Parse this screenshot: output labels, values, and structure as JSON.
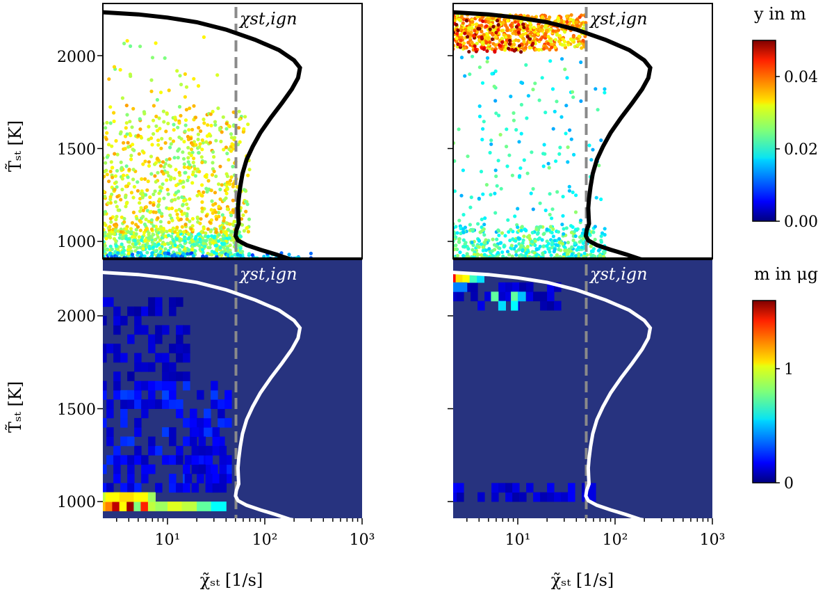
{
  "chart_data": [
    {
      "type": "scatter",
      "xscale": "log",
      "xlim": [
        2,
        1000
      ],
      "ylim": [
        900,
        2250
      ],
      "yticks": [
        "1000",
        "1500",
        "2000"
      ],
      "ylabel": "T̃ₛₜ [K]",
      "annotation": "χst,ign",
      "chi_ign": 48,
      "colorbar": {
        "label": "y in m",
        "min": 0.0,
        "max": 0.05,
        "ticks": [
          "0.00",
          "0.02",
          "0.04"
        ]
      },
      "clouds": [
        {
          "region": "dense band near 920-1050 K",
          "x": [
            2,
            60
          ],
          "y": [
            920,
            1050
          ],
          "color_value": 0.025
        },
        {
          "region": "scattered cloud",
          "x": [
            2,
            70
          ],
          "y": [
            1050,
            1700
          ],
          "color_value": 0.03
        },
        {
          "region": "sparse upper points",
          "x": [
            2,
            40
          ],
          "y": [
            1700,
            2100
          ],
          "color_value": 0.03
        },
        {
          "region": "low-y points at bottom",
          "x": [
            2,
            300
          ],
          "y": [
            905,
            940
          ],
          "color_value": 0.015
        }
      ]
    },
    {
      "type": "scatter",
      "xscale": "log",
      "xlim": [
        2,
        1000
      ],
      "ylim": [
        900,
        2250
      ],
      "annotation": "χst,ign",
      "chi_ign": 48,
      "clouds": [
        {
          "region": "burning branch 2050-2220 K",
          "x": [
            2,
            50
          ],
          "y": [
            2030,
            2220
          ],
          "color_value": 0.035
        },
        {
          "region": "hot high-y points",
          "x": [
            2,
            15
          ],
          "y": [
            2020,
            2200
          ],
          "color_value": 0.048
        },
        {
          "region": "sparse middle points",
          "x": [
            2,
            80
          ],
          "y": [
            1050,
            2000
          ],
          "color_value": 0.02
        },
        {
          "region": "dense low band",
          "x": [
            2,
            80
          ],
          "y": [
            905,
            1080
          ],
          "color_value": 0.022
        }
      ]
    },
    {
      "type": "heatmap",
      "xscale": "log",
      "xlim": [
        2,
        1000
      ],
      "ylim": [
        900,
        2250
      ],
      "xticks": [
        "10¹",
        "10²",
        "10³"
      ],
      "yticks": [
        "1000",
        "1500",
        "2000"
      ],
      "xlabel": "χ̃ₛₜ [1/s]",
      "ylabel": "T̃ₛₜ [K]",
      "annotation": "χst,ign",
      "chi_ign": 48,
      "colorbar": {
        "label": "m in μg",
        "min": 0,
        "max": 1.6,
        "ticks": [
          "0",
          "1"
        ]
      },
      "hot_cells": [
        {
          "x": [
            2.0,
            2.3
          ],
          "y": [
            950,
            1000
          ],
          "value": 1.1
        },
        {
          "x": [
            2.3,
            2.7
          ],
          "y": [
            950,
            1000
          ],
          "value": 1.2
        },
        {
          "x": [
            2.7,
            3.2
          ],
          "y": [
            950,
            1000
          ],
          "value": 1.5
        },
        {
          "x": [
            3.2,
            3.8
          ],
          "y": [
            950,
            1000
          ],
          "value": 1.0
        },
        {
          "x": [
            3.8,
            4.5
          ],
          "y": [
            950,
            1000
          ],
          "value": 1.55
        },
        {
          "x": [
            4.5,
            5.3
          ],
          "y": [
            950,
            1000
          ],
          "value": 0.8
        },
        {
          "x": [
            5.3,
            6.3
          ],
          "y": [
            950,
            1000
          ],
          "value": 1.35
        },
        {
          "x": [
            6.3,
            7.5
          ],
          "y": [
            950,
            1000
          ],
          "value": 0.9
        },
        {
          "x": [
            7.5,
            10
          ],
          "y": [
            950,
            1000
          ],
          "value": 0.85
        },
        {
          "x": [
            10,
            14
          ],
          "y": [
            950,
            1000
          ],
          "value": 0.95
        },
        {
          "x": [
            14,
            20
          ],
          "y": [
            950,
            1000
          ],
          "value": 0.9
        },
        {
          "x": [
            20,
            28
          ],
          "y": [
            950,
            1000
          ],
          "value": 0.75
        },
        {
          "x": [
            28,
            40
          ],
          "y": [
            950,
            1000
          ],
          "value": 0.6
        },
        {
          "x": [
            2.0,
            2.3
          ],
          "y": [
            1000,
            1050
          ],
          "value": 0.9
        },
        {
          "x": [
            2.3,
            3.2
          ],
          "y": [
            1000,
            1050
          ],
          "value": 1.0
        },
        {
          "x": [
            3.2,
            4.5
          ],
          "y": [
            1000,
            1050
          ],
          "value": 1.05
        },
        {
          "x": [
            4.5,
            6.3
          ],
          "y": [
            1000,
            1050
          ],
          "value": 1.0
        },
        {
          "x": [
            6.3,
            7.5
          ],
          "y": [
            1000,
            1050
          ],
          "value": 0.85
        }
      ]
    },
    {
      "type": "heatmap",
      "xscale": "log",
      "xlim": [
        2,
        1000
      ],
      "ylim": [
        900,
        2250
      ],
      "xticks": [
        "10¹",
        "10²",
        "10³"
      ],
      "xlabel": "χ̃ₛₜ [1/s]",
      "annotation": "χst,ign",
      "chi_ign": 48,
      "hot_cells": [
        {
          "x": [
            2.0,
            2.3
          ],
          "y": [
            2180,
            2230
          ],
          "value": 1.4
        },
        {
          "x": [
            2.3,
            2.7
          ],
          "y": [
            2180,
            2230
          ],
          "value": 1.05
        },
        {
          "x": [
            2.7,
            3.2
          ],
          "y": [
            2180,
            2230
          ],
          "value": 1.0
        },
        {
          "x": [
            3.2,
            3.8
          ],
          "y": [
            2180,
            2230
          ],
          "value": 0.7
        },
        {
          "x": [
            3.8,
            4.5
          ],
          "y": [
            2180,
            2230
          ],
          "value": 0.55
        },
        {
          "x": [
            5.3,
            6.3
          ],
          "y": [
            2080,
            2130
          ],
          "value": 0.75
        },
        {
          "x": [
            6.3,
            7.5
          ],
          "y": [
            2030,
            2080
          ],
          "value": 0.55
        },
        {
          "x": [
            8.5,
            10
          ],
          "y": [
            2080,
            2130
          ],
          "value": 0.75
        },
        {
          "x": [
            8.5,
            10
          ],
          "y": [
            2030,
            2080
          ],
          "value": 0.6
        },
        {
          "x": [
            10,
            12
          ],
          "y": [
            2080,
            2130
          ],
          "value": 0.5
        },
        {
          "x": [
            2.0,
            3.0
          ],
          "y": [
            2130,
            2180
          ],
          "value": 0.4
        }
      ]
    }
  ],
  "s_curve": [
    [
      2,
      2235
    ],
    [
      5,
      2222
    ],
    [
      10,
      2205
    ],
    [
      20,
      2180
    ],
    [
      40,
      2140
    ],
    [
      80,
      2085
    ],
    [
      140,
      2030
    ],
    [
      200,
      1975
    ],
    [
      230,
      1935
    ],
    [
      220,
      1880
    ],
    [
      190,
      1820
    ],
    [
      150,
      1745
    ],
    [
      115,
      1665
    ],
    [
      90,
      1585
    ],
    [
      75,
      1510
    ],
    [
      65,
      1440
    ],
    [
      59,
      1365
    ],
    [
      56,
      1295
    ],
    [
      54,
      1230
    ],
    [
      53,
      1180
    ],
    [
      53.5,
      1130
    ],
    [
      54,
      1095
    ],
    [
      51,
      1060
    ],
    [
      50,
      1030
    ],
    [
      53,
      1005
    ],
    [
      65,
      980
    ],
    [
      90,
      955
    ],
    [
      130,
      930
    ],
    [
      180,
      905
    ],
    [
      210,
      898
    ]
  ],
  "colors": {
    "frame": "#000000",
    "heat_background": "#27337f",
    "dashed_line": "#8a8a8a",
    "s_curve_top": "#000000",
    "s_curve_bottom": "#ffffff"
  }
}
